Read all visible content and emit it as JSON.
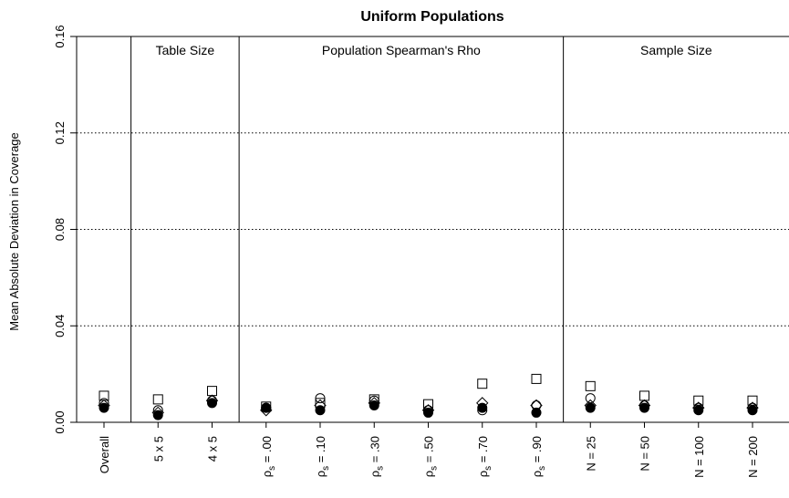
{
  "chart_data": {
    "type": "scatter",
    "title": "Uniform Populations",
    "ylabel": "Mean Absolute Deviation in Coverage",
    "xlabel": "",
    "ylim": [
      0,
      0.16
    ],
    "yticks": [
      "0.00",
      "0.04",
      "0.08",
      "0.12",
      "0.16"
    ],
    "ytick_values": [
      0,
      0.04,
      0.08,
      0.12,
      0.16
    ],
    "gridlines": [
      0.04,
      0.08,
      0.12
    ],
    "grid": "dotted horizontal",
    "legend": "none",
    "categories": [
      "Overall",
      "5 x 5",
      "4 x 5",
      "ρs = .00",
      "ρs = .10",
      "ρs = .30",
      "ρs = .50",
      "ρs = .70",
      "ρs = .90",
      "N = 25",
      "N = 50",
      "N = 100",
      "N = 200"
    ],
    "category_parts": [
      {
        "main": "Overall"
      },
      {
        "main": "5 x 5"
      },
      {
        "main": "4 x 5"
      },
      {
        "main": "ρ",
        "sub": "s",
        "rest": " = .00"
      },
      {
        "main": "ρ",
        "sub": "s",
        "rest": " = .10"
      },
      {
        "main": "ρ",
        "sub": "s",
        "rest": " = .30"
      },
      {
        "main": "ρ",
        "sub": "s",
        "rest": " = .50"
      },
      {
        "main": "ρ",
        "sub": "s",
        "rest": " = .70"
      },
      {
        "main": "ρ",
        "sub": "s",
        "rest": " = .90"
      },
      {
        "main": "N = 25"
      },
      {
        "main": "N = 50"
      },
      {
        "main": "N = 100"
      },
      {
        "main": "N = 200"
      }
    ],
    "groups": [
      {
        "label": "",
        "categories": [
          0
        ]
      },
      {
        "label": "Table Size",
        "categories": [
          1,
          2
        ]
      },
      {
        "label": "Population Spearman's Rho",
        "categories": [
          3,
          4,
          5,
          6,
          7,
          8
        ]
      },
      {
        "label": "Sample Size",
        "categories": [
          9,
          10,
          11,
          12
        ]
      }
    ],
    "series": [
      {
        "marker": "square",
        "values": [
          0.011,
          0.0095,
          0.013,
          0.0065,
          0.008,
          0.0095,
          0.0075,
          0.016,
          0.018,
          0.015,
          0.011,
          0.009,
          0.009
        ]
      },
      {
        "marker": "circle",
        "values": [
          0.008,
          0.005,
          0.009,
          0.006,
          0.01,
          0.009,
          0.005,
          0.005,
          0.007,
          0.01,
          0.007,
          0.006,
          0.006
        ]
      },
      {
        "marker": "diamond",
        "values": [
          0.007,
          0.004,
          0.009,
          0.005,
          0.007,
          0.008,
          0.005,
          0.008,
          0.007,
          0.007,
          0.007,
          0.006,
          0.006
        ]
      },
      {
        "marker": "filled-circle",
        "values": [
          0.006,
          0.003,
          0.008,
          0.006,
          0.005,
          0.007,
          0.004,
          0.006,
          0.004,
          0.006,
          0.006,
          0.005,
          0.005
        ]
      }
    ],
    "colors": {
      "ink": "#000000",
      "background": "#ffffff"
    }
  }
}
